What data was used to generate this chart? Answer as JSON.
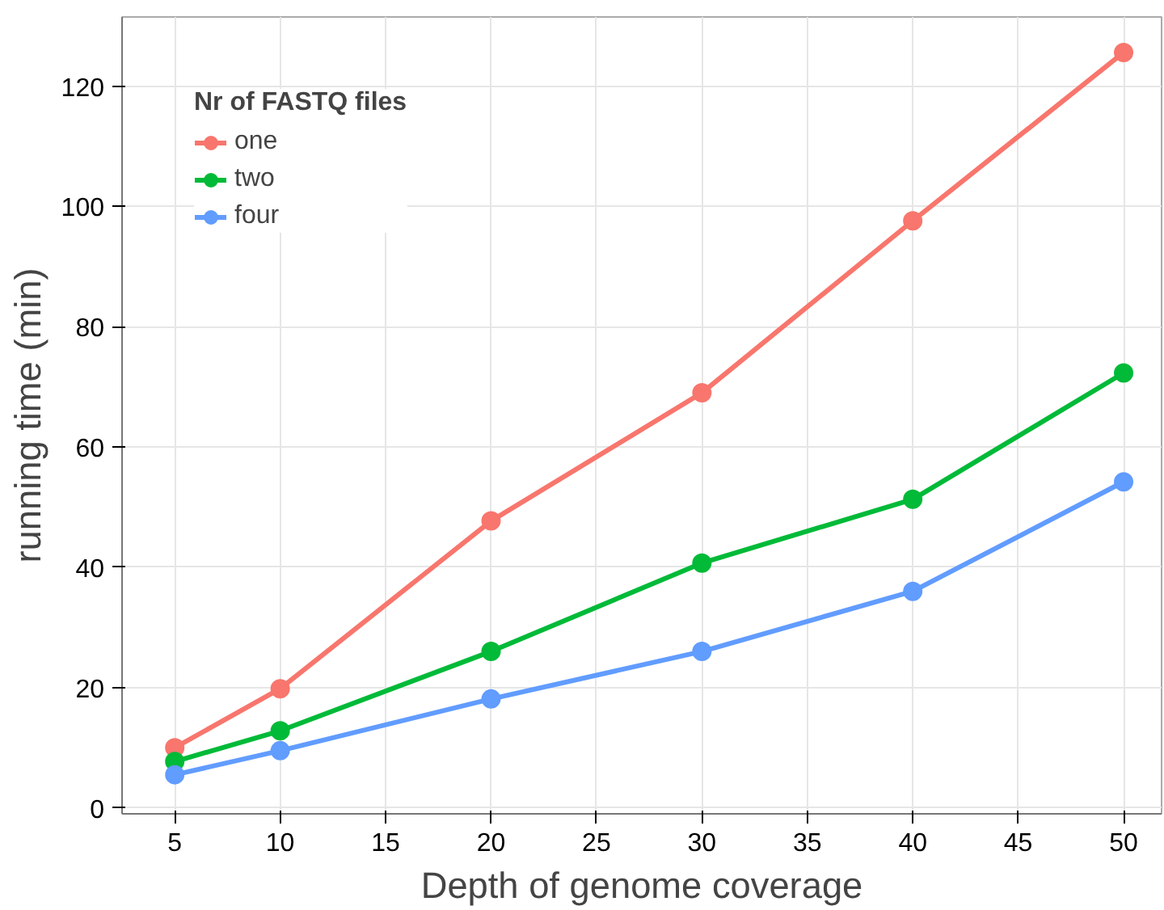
{
  "chart_data": {
    "type": "line",
    "xlabel": "Depth of genome coverage",
    "ylabel": "running time (min)",
    "legend_title": "Nr of FASTQ files",
    "x": [
      5,
      10,
      20,
      30,
      40,
      50
    ],
    "series": [
      {
        "name": "one",
        "color": "#f8766d",
        "values": [
          10,
          19.8,
          47.7,
          69,
          97.6,
          125.6
        ]
      },
      {
        "name": "two",
        "color": "#00ba38",
        "values": [
          7.7,
          12.8,
          26,
          40.7,
          51.3,
          72.3
        ]
      },
      {
        "name": "four",
        "color": "#619cff",
        "values": [
          5.5,
          9.5,
          18.1,
          26,
          36,
          54.2
        ]
      }
    ],
    "xlim": [
      2.5,
      51.8
    ],
    "ylim": [
      -1,
      131.5
    ],
    "xticks": [
      5,
      10,
      15,
      20,
      25,
      30,
      35,
      40,
      45,
      50
    ],
    "yticks": [
      0,
      20,
      40,
      60,
      80,
      100,
      120
    ],
    "grid": true,
    "legend": "top left",
    "marker": "circle",
    "line_style": "solid"
  }
}
